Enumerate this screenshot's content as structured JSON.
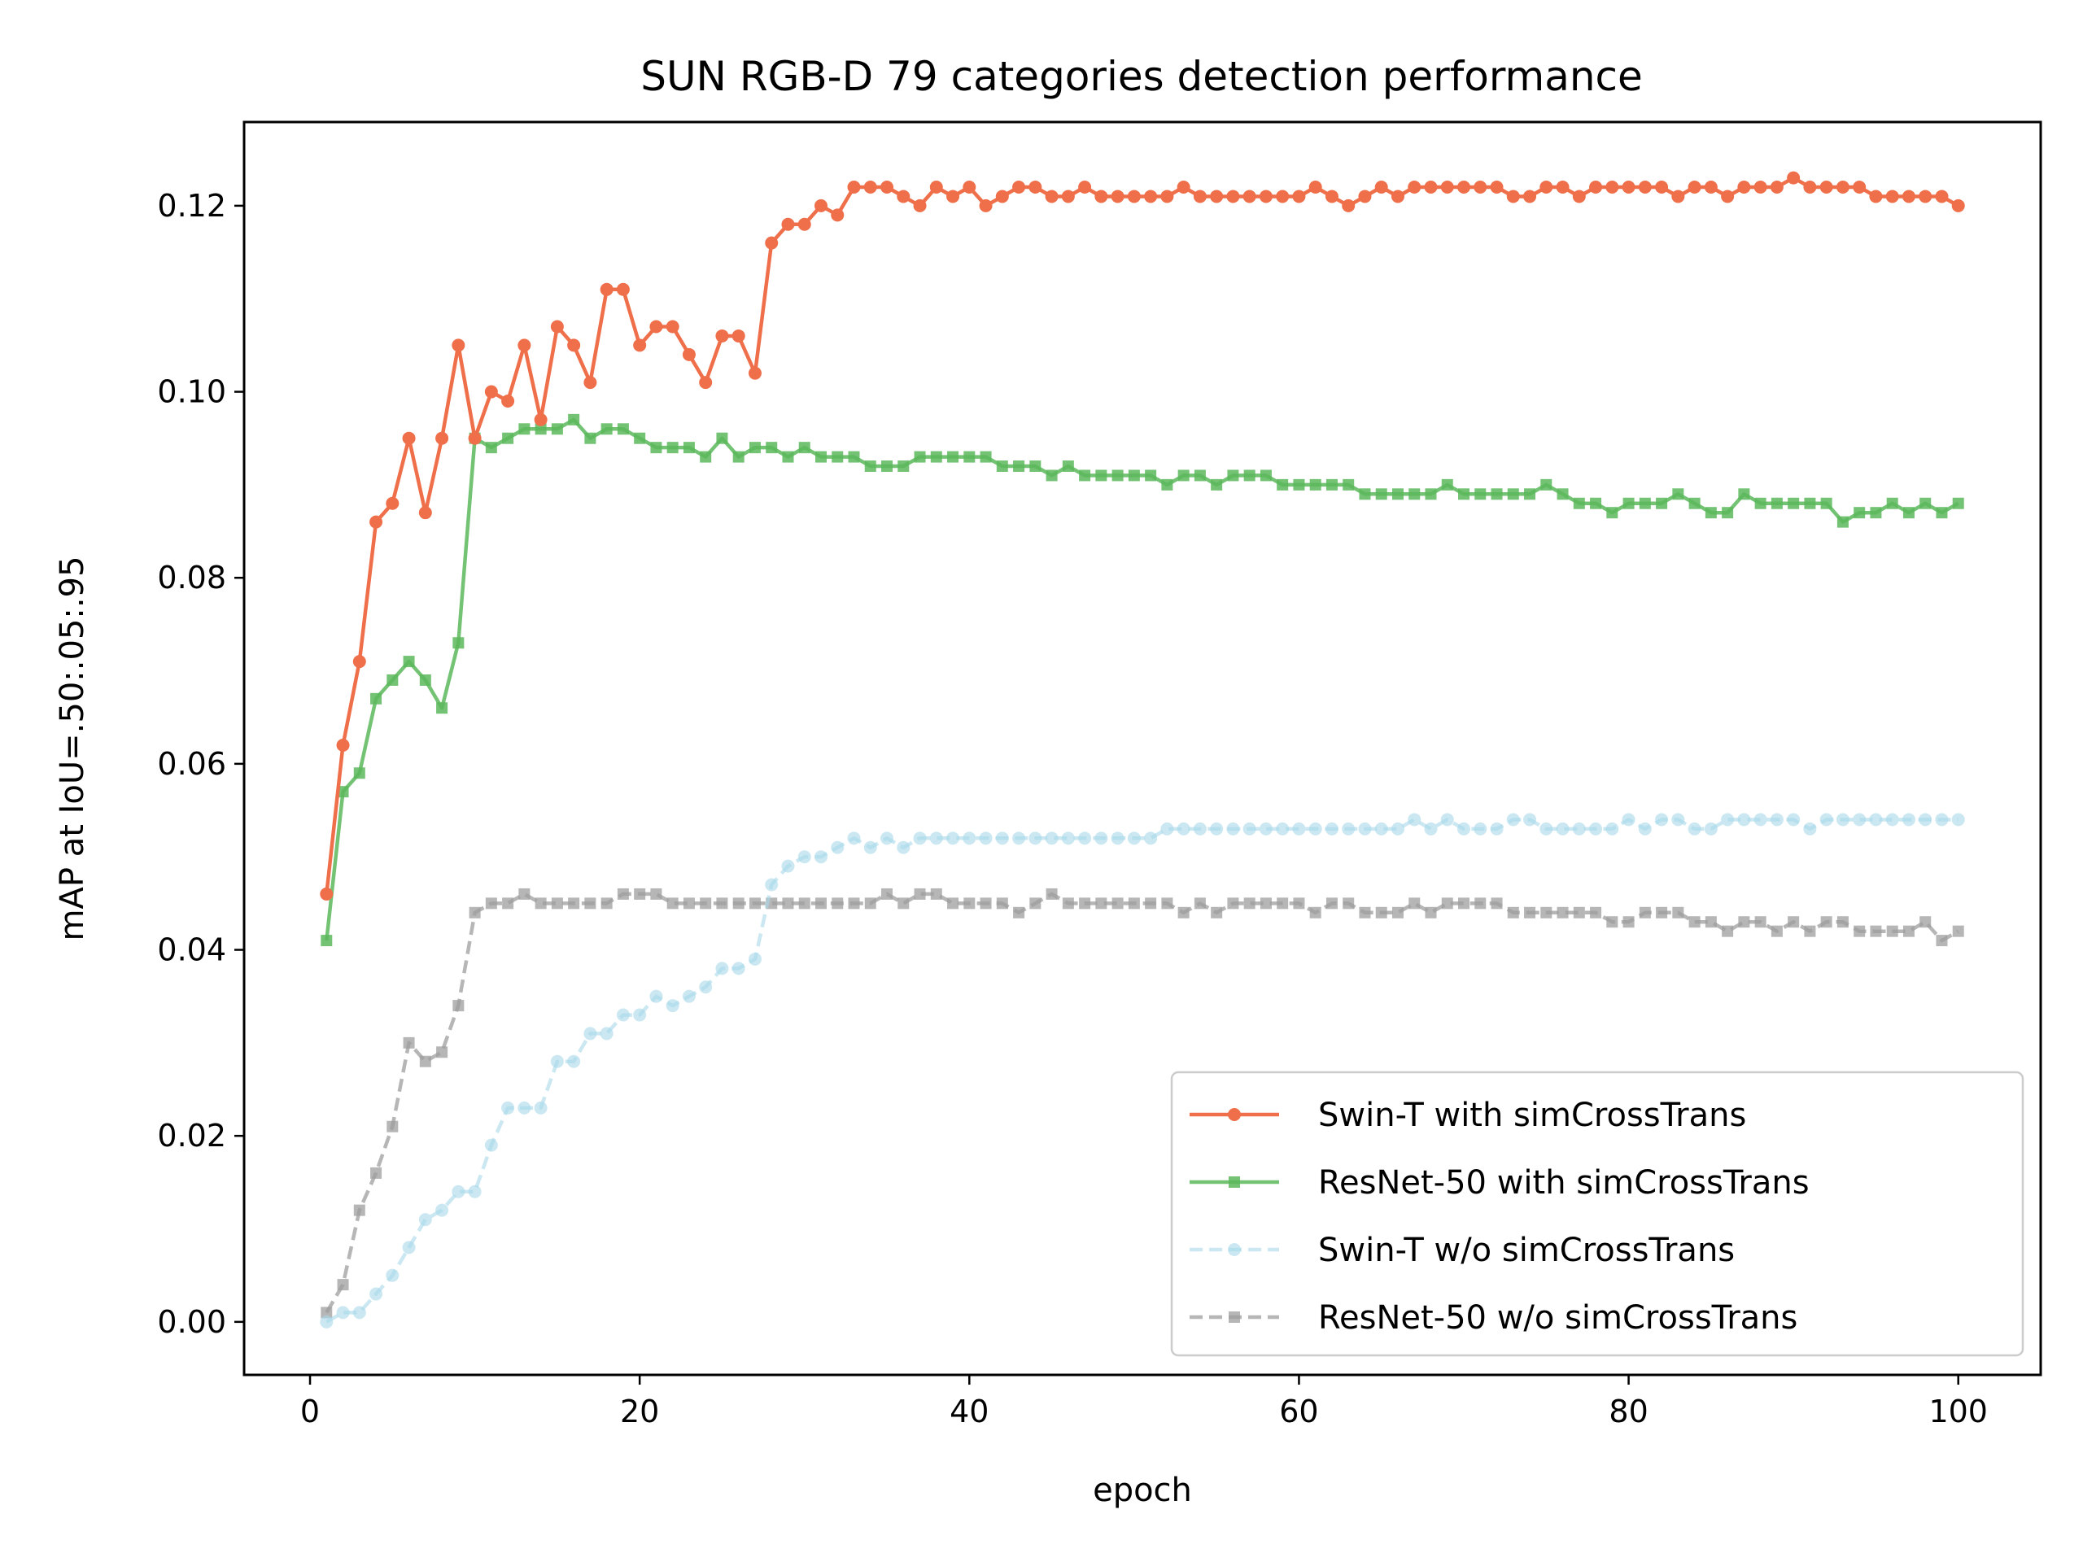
{
  "chart_data": {
    "type": "line",
    "title": "SUN RGB-D 79 categories detection performance",
    "xlabel": "epoch",
    "ylabel": "mAP at IoU=.50:.05:.95",
    "xlim": [
      -4,
      105
    ],
    "ylim": [
      -0.0057,
      0.129
    ],
    "xticks": [
      0,
      20,
      40,
      60,
      80,
      100
    ],
    "xtick_labels": [
      "0",
      "20",
      "40",
      "60",
      "80",
      "100"
    ],
    "yticks": [
      0.0,
      0.02,
      0.04,
      0.06,
      0.08,
      0.1,
      0.12
    ],
    "ytick_labels": [
      "0.00",
      "0.02",
      "0.04",
      "0.06",
      "0.08",
      "0.10",
      "0.12"
    ],
    "grid": false,
    "legend_position": "lower-right",
    "series": [
      {
        "name": "Swin-T with simCrossTrans",
        "color": "#ef6f4a",
        "line_style": "solid",
        "marker": "circle",
        "opacity": 1.0,
        "x_start": 1,
        "values": [
          0.046,
          0.062,
          0.071,
          0.086,
          0.088,
          0.095,
          0.087,
          0.095,
          0.105,
          0.095,
          0.1,
          0.099,
          0.105,
          0.097,
          0.107,
          0.105,
          0.101,
          0.111,
          0.111,
          0.105,
          0.107,
          0.107,
          0.104,
          0.101,
          0.106,
          0.106,
          0.102,
          0.116,
          0.118,
          0.118,
          0.12,
          0.119,
          0.122,
          0.122,
          0.122,
          0.121,
          0.12,
          0.122,
          0.121,
          0.122,
          0.12,
          0.121,
          0.122,
          0.122,
          0.121,
          0.121,
          0.122,
          0.121,
          0.121,
          0.121,
          0.121,
          0.121,
          0.122,
          0.121,
          0.121,
          0.121,
          0.121,
          0.121,
          0.121,
          0.121,
          0.122,
          0.121,
          0.12,
          0.121,
          0.122,
          0.121,
          0.122,
          0.122,
          0.122,
          0.122,
          0.122,
          0.122,
          0.121,
          0.121,
          0.122,
          0.122,
          0.121,
          0.122,
          0.122,
          0.122,
          0.122,
          0.122,
          0.121,
          0.122,
          0.122,
          0.121,
          0.122,
          0.122,
          0.122,
          0.123,
          0.122,
          0.122,
          0.122,
          0.122,
          0.121,
          0.121,
          0.121,
          0.121,
          0.121,
          0.12
        ]
      },
      {
        "name": "ResNet-50 with simCrossTrans",
        "color": "#5cb85c",
        "line_style": "solid",
        "marker": "square",
        "opacity": 0.85,
        "x_start": 1,
        "values": [
          0.041,
          0.057,
          0.059,
          0.067,
          0.069,
          0.071,
          0.069,
          0.066,
          0.073,
          0.095,
          0.094,
          0.095,
          0.096,
          0.096,
          0.096,
          0.097,
          0.095,
          0.096,
          0.096,
          0.095,
          0.094,
          0.094,
          0.094,
          0.093,
          0.095,
          0.093,
          0.094,
          0.094,
          0.093,
          0.094,
          0.093,
          0.093,
          0.093,
          0.092,
          0.092,
          0.092,
          0.093,
          0.093,
          0.093,
          0.093,
          0.093,
          0.092,
          0.092,
          0.092,
          0.091,
          0.092,
          0.091,
          0.091,
          0.091,
          0.091,
          0.091,
          0.09,
          0.091,
          0.091,
          0.09,
          0.091,
          0.091,
          0.091,
          0.09,
          0.09,
          0.09,
          0.09,
          0.09,
          0.089,
          0.089,
          0.089,
          0.089,
          0.089,
          0.09,
          0.089,
          0.089,
          0.089,
          0.089,
          0.089,
          0.09,
          0.089,
          0.088,
          0.088,
          0.087,
          0.088,
          0.088,
          0.088,
          0.089,
          0.088,
          0.087,
          0.087,
          0.089,
          0.088,
          0.088,
          0.088,
          0.088,
          0.088,
          0.086,
          0.087,
          0.087,
          0.088,
          0.087,
          0.088,
          0.087,
          0.088
        ]
      },
      {
        "name": "Swin-T w/o simCrossTrans",
        "color": "#a8d8ea",
        "line_style": "dashed",
        "marker": "circle",
        "opacity": 0.6,
        "x_start": 1,
        "values": [
          0.0,
          0.001,
          0.001,
          0.003,
          0.005,
          0.008,
          0.011,
          0.012,
          0.014,
          0.014,
          0.019,
          0.023,
          0.023,
          0.023,
          0.028,
          0.028,
          0.031,
          0.031,
          0.033,
          0.033,
          0.035,
          0.034,
          0.035,
          0.036,
          0.038,
          0.038,
          0.039,
          0.047,
          0.049,
          0.05,
          0.05,
          0.051,
          0.052,
          0.051,
          0.052,
          0.051,
          0.052,
          0.052,
          0.052,
          0.052,
          0.052,
          0.052,
          0.052,
          0.052,
          0.052,
          0.052,
          0.052,
          0.052,
          0.052,
          0.052,
          0.052,
          0.053,
          0.053,
          0.053,
          0.053,
          0.053,
          0.053,
          0.053,
          0.053,
          0.053,
          0.053,
          0.053,
          0.053,
          0.053,
          0.053,
          0.053,
          0.054,
          0.053,
          0.054,
          0.053,
          0.053,
          0.053,
          0.054,
          0.054,
          0.053,
          0.053,
          0.053,
          0.053,
          0.053,
          0.054,
          0.053,
          0.054,
          0.054,
          0.053,
          0.053,
          0.054,
          0.054,
          0.054,
          0.054,
          0.054,
          0.053,
          0.054,
          0.054,
          0.054,
          0.054,
          0.054,
          0.054,
          0.054,
          0.054,
          0.054
        ]
      },
      {
        "name": "ResNet-50 w/o simCrossTrans",
        "color": "#9e9e9e",
        "line_style": "dashed",
        "marker": "square",
        "opacity": 0.75,
        "x_start": 1,
        "values": [
          0.001,
          0.004,
          0.012,
          0.016,
          0.021,
          0.03,
          0.028,
          0.029,
          0.034,
          0.044,
          0.045,
          0.045,
          0.046,
          0.045,
          0.045,
          0.045,
          0.045,
          0.045,
          0.046,
          0.046,
          0.046,
          0.045,
          0.045,
          0.045,
          0.045,
          0.045,
          0.045,
          0.045,
          0.045,
          0.045,
          0.045,
          0.045,
          0.045,
          0.045,
          0.046,
          0.045,
          0.046,
          0.046,
          0.045,
          0.045,
          0.045,
          0.045,
          0.044,
          0.045,
          0.046,
          0.045,
          0.045,
          0.045,
          0.045,
          0.045,
          0.045,
          0.045,
          0.044,
          0.045,
          0.044,
          0.045,
          0.045,
          0.045,
          0.045,
          0.045,
          0.044,
          0.045,
          0.045,
          0.044,
          0.044,
          0.044,
          0.045,
          0.044,
          0.045,
          0.045,
          0.045,
          0.045,
          0.044,
          0.044,
          0.044,
          0.044,
          0.044,
          0.044,
          0.043,
          0.043,
          0.044,
          0.044,
          0.044,
          0.043,
          0.043,
          0.042,
          0.043,
          0.043,
          0.042,
          0.043,
          0.042,
          0.043,
          0.043,
          0.042,
          0.042,
          0.042,
          0.042,
          0.043,
          0.041,
          0.042
        ]
      }
    ]
  }
}
